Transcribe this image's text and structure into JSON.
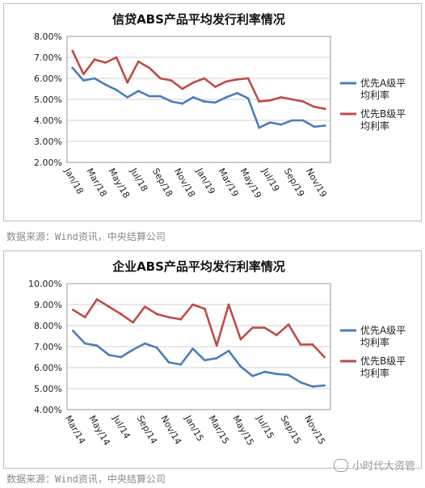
{
  "chart_data": [
    {
      "type": "line",
      "title": "信贷ABS产品平均发行利率情况",
      "categories": [
        "Jan/18",
        "Feb/18",
        "Mar/18",
        "Apr/18",
        "May/18",
        "Jun/18",
        "Jul/18",
        "Aug/18",
        "Sep/18",
        "Oct/18",
        "Nov/18",
        "Dec/18",
        "Jan/19",
        "Feb/19",
        "Mar/19",
        "Apr/19",
        "May/19",
        "Jun/19",
        "Jul/19",
        "Aug/19",
        "Sep/19",
        "Oct/19",
        "Nov/19",
        "Dec/19"
      ],
      "tick_labels": [
        "Jan/18",
        "Mar/18",
        "May/18",
        "Jul/18",
        "Sep/18",
        "Nov/18",
        "Jan/19",
        "Mar/19",
        "May/19",
        "Jul/19",
        "Sep/19",
        "Nov/19"
      ],
      "y_ticks": [
        "2.00%",
        "3.00%",
        "4.00%",
        "5.00%",
        "6.00%",
        "7.00%",
        "8.00%"
      ],
      "ylim": [
        2,
        8
      ],
      "grid": "horizontal",
      "legend": "right",
      "series": [
        {
          "name": "优先A级平均利率",
          "color": "#4a7eba",
          "values": [
            6.5,
            5.9,
            6.0,
            5.7,
            5.45,
            5.1,
            5.4,
            5.15,
            5.15,
            4.9,
            4.8,
            5.1,
            4.9,
            4.85,
            5.1,
            5.3,
            5.05,
            3.65,
            3.9,
            3.8,
            4.0,
            4.0,
            3.7,
            3.75
          ]
        },
        {
          "name": "优先B级平均利率",
          "color": "#be4b48",
          "values": [
            7.3,
            6.2,
            6.9,
            6.75,
            7.0,
            5.8,
            6.8,
            6.5,
            6.0,
            5.9,
            5.5,
            5.8,
            6.0,
            5.6,
            5.85,
            5.95,
            6.0,
            4.9,
            4.95,
            5.1,
            5.0,
            4.9,
            4.65,
            4.55
          ]
        }
      ]
    },
    {
      "type": "line",
      "title": "企业ABS产品平均发行利率情况",
      "categories": [
        "Mar/14",
        "Apr/14",
        "May/14",
        "Jun/14",
        "Jul/14",
        "Aug/14",
        "Sep/14",
        "Oct/14",
        "Nov/14",
        "Dec/14",
        "Jan/15",
        "Feb/15",
        "Mar/15",
        "Apr/15",
        "May/15",
        "Jun/15",
        "Jul/15",
        "Aug/15",
        "Sep/15",
        "Oct/15",
        "Nov/15",
        "Dec/15"
      ],
      "tick_labels": [
        "Mar/14",
        "May/14",
        "Jul/14",
        "Sep/14",
        "Nov/14",
        "Jan/15",
        "Mar/15",
        "May/15",
        "Jul/15",
        "Sep/15",
        "Nov/15"
      ],
      "y_ticks": [
        "4.00%",
        "5.00%",
        "6.00%",
        "7.00%",
        "8.00%",
        "9.00%",
        "10.00%"
      ],
      "ylim": [
        4,
        10
      ],
      "grid": "horizontal",
      "legend": "right",
      "series": [
        {
          "name": "优先A级平均利率",
          "color": "#4a7eba",
          "values": [
            7.75,
            7.15,
            7.05,
            6.6,
            6.5,
            6.85,
            7.15,
            6.95,
            6.25,
            6.15,
            6.9,
            6.35,
            6.45,
            6.8,
            6.05,
            5.6,
            5.8,
            5.7,
            5.65,
            5.3,
            5.1,
            5.15
          ]
        },
        {
          "name": "优先B级平均利率",
          "color": "#be4b48",
          "values": [
            8.75,
            8.4,
            9.25,
            8.9,
            8.55,
            8.15,
            8.9,
            8.55,
            8.4,
            8.3,
            9.0,
            8.8,
            7.05,
            9.0,
            7.35,
            7.9,
            7.9,
            7.55,
            8.05,
            7.1,
            7.1,
            6.5
          ]
        }
      ]
    }
  ],
  "source1": "数据来源：Wind资讯，中央结算公司",
  "source2": "数据来源：Wind资讯，中央结算公司",
  "watermark": "小时代大资管"
}
